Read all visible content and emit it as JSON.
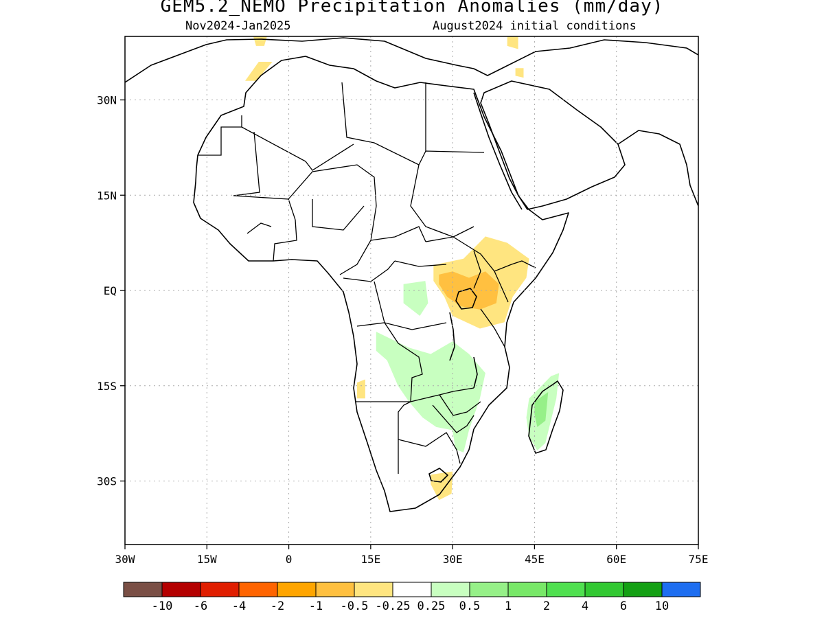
{
  "title": "GEM5.2_NEMO Precipitation Anomalies (mm/day)",
  "subtitle_left": "Nov2024-Jan2025",
  "subtitle_right": "August2024 initial conditions",
  "map": {
    "lon_range": [
      -30,
      75
    ],
    "lat_range": [
      -40,
      40
    ],
    "gridlines": "dotted",
    "lon_ticks": [
      {
        "value": -30,
        "label": "30W"
      },
      {
        "value": -15,
        "label": "15W"
      },
      {
        "value": 0,
        "label": "0"
      },
      {
        "value": 15,
        "label": "15E"
      },
      {
        "value": 30,
        "label": "30E"
      },
      {
        "value": 45,
        "label": "45E"
      },
      {
        "value": 60,
        "label": "60E"
      },
      {
        "value": 75,
        "label": "75E"
      }
    ],
    "lat_ticks": [
      {
        "value": 30,
        "label": "30N"
      },
      {
        "value": 15,
        "label": "15N"
      },
      {
        "value": 0,
        "label": "EQ"
      },
      {
        "value": -15,
        "label": "15S"
      },
      {
        "value": -30,
        "label": "30S"
      }
    ]
  },
  "colorbar": {
    "colors": [
      "#7a4f45",
      "#b40000",
      "#e01e00",
      "#ff6400",
      "#ffa500",
      "#ffc040",
      "#ffe580",
      "#ffffff",
      "#c8ffc0",
      "#96f088",
      "#78e868",
      "#50e050",
      "#32c832",
      "#14a014",
      "#1e6ef0"
    ],
    "labels": [
      {
        "text": "-10",
        "boundary": 1
      },
      {
        "text": "-6",
        "boundary": 2
      },
      {
        "text": "-4",
        "boundary": 3
      },
      {
        "text": "-2",
        "boundary": 4
      },
      {
        "text": "-1",
        "boundary": 5
      },
      {
        "text": "-0.5",
        "boundary": 6
      },
      {
        "text": "-0.25",
        "boundary": 7
      },
      {
        "text": "0.25",
        "boundary": 8
      },
      {
        "text": "0.5",
        "boundary": 9
      },
      {
        "text": "1",
        "boundary": 10
      },
      {
        "text": "2",
        "boundary": 11
      },
      {
        "text": "4",
        "boundary": 12
      },
      {
        "text": "6",
        "boundary": 13
      },
      {
        "text": "10",
        "boundary": 14
      }
    ]
  },
  "anomaly_patches": [
    {
      "name": "east-africa-dry",
      "category": "-0.5",
      "color": "#ffe580",
      "points": [
        [
          26.5,
          4
        ],
        [
          32,
          5
        ],
        [
          36,
          8.5
        ],
        [
          40,
          7.5
        ],
        [
          44,
          5
        ],
        [
          43.5,
          2
        ],
        [
          41,
          -1
        ],
        [
          39.5,
          -5
        ],
        [
          35,
          -6
        ],
        [
          30,
          -4
        ],
        [
          28.5,
          -1
        ],
        [
          26.5,
          1.5
        ]
      ]
    },
    {
      "name": "east-africa-dry-core",
      "category": "-1",
      "color": "#ffc040",
      "points": [
        [
          27.5,
          2.5
        ],
        [
          30,
          3
        ],
        [
          33,
          2
        ],
        [
          36,
          3
        ],
        [
          38.5,
          1
        ],
        [
          38,
          -2
        ],
        [
          35,
          -3
        ],
        [
          31.5,
          -2.5
        ],
        [
          29,
          -1
        ],
        [
          27.5,
          1
        ]
      ]
    },
    {
      "name": "morocco-dry",
      "category": "-0.5",
      "color": "#ffe580",
      "points": [
        [
          -8,
          33
        ],
        [
          -5.5,
          36
        ],
        [
          -3,
          36
        ],
        [
          -6,
          33
        ]
      ]
    },
    {
      "name": "north-med-dry",
      "category": "-0.5",
      "color": "#ffe580",
      "points": [
        [
          -6.5,
          40
        ],
        [
          -4,
          40
        ],
        [
          -4.5,
          38.5
        ],
        [
          -6,
          38.5
        ]
      ]
    },
    {
      "name": "levant-dry",
      "category": "-0.5",
      "color": "#ffe580",
      "points": [
        [
          40,
          40
        ],
        [
          42,
          40
        ],
        [
          42,
          38
        ],
        [
          40,
          38.5
        ]
      ]
    },
    {
      "name": "iraq-dry",
      "category": "-0.5",
      "color": "#ffe580",
      "points": [
        [
          41.5,
          35
        ],
        [
          43,
          35
        ],
        [
          43,
          33.5
        ],
        [
          41.5,
          33.8
        ]
      ]
    },
    {
      "name": "south-africa-dry",
      "category": "-0.5",
      "color": "#ffe580",
      "points": [
        [
          26,
          -29
        ],
        [
          30,
          -28.5
        ],
        [
          29.8,
          -32
        ],
        [
          27.5,
          -33
        ],
        [
          26,
          -30.5
        ]
      ]
    },
    {
      "name": "angola-dry",
      "category": "-0.5",
      "color": "#ffe580",
      "points": [
        [
          12.5,
          -14.5
        ],
        [
          14,
          -14
        ],
        [
          14,
          -17
        ],
        [
          12.5,
          -17
        ]
      ]
    },
    {
      "name": "congo-wet",
      "category": "0.25",
      "color": "#c8ffc0",
      "points": [
        [
          21,
          1
        ],
        [
          25,
          1.5
        ],
        [
          25.5,
          -2
        ],
        [
          24,
          -4
        ],
        [
          21,
          -2
        ]
      ]
    },
    {
      "name": "southern-africa-wet",
      "category": "0.25",
      "color": "#c8ffc0",
      "points": [
        [
          16,
          -6.5
        ],
        [
          22,
          -9
        ],
        [
          26,
          -10
        ],
        [
          28,
          -9
        ],
        [
          30,
          -8
        ],
        [
          33,
          -10
        ],
        [
          36,
          -13
        ],
        [
          35,
          -17
        ],
        [
          33,
          -22
        ],
        [
          32,
          -25.5
        ],
        [
          30.5,
          -25
        ],
        [
          30,
          -22
        ],
        [
          27,
          -21.5
        ],
        [
          24.5,
          -20
        ],
        [
          22,
          -17.5
        ],
        [
          20,
          -15
        ],
        [
          18,
          -11
        ],
        [
          16,
          -9.5
        ]
      ]
    },
    {
      "name": "madagascar-wet",
      "category": "0.25",
      "color": "#c8ffc0",
      "points": [
        [
          44,
          -17
        ],
        [
          48,
          -13.5
        ],
        [
          49.5,
          -13
        ],
        [
          49,
          -17
        ],
        [
          47,
          -24
        ],
        [
          45.5,
          -25.2
        ],
        [
          44,
          -23
        ],
        [
          43.5,
          -20
        ]
      ]
    },
    {
      "name": "madagascar-wet-core",
      "category": "0.5",
      "color": "#96f088",
      "points": [
        [
          45,
          -17.5
        ],
        [
          47.5,
          -16
        ],
        [
          47,
          -20.5
        ],
        [
          45.5,
          -21.5
        ],
        [
          45,
          -19.5
        ]
      ]
    }
  ]
}
